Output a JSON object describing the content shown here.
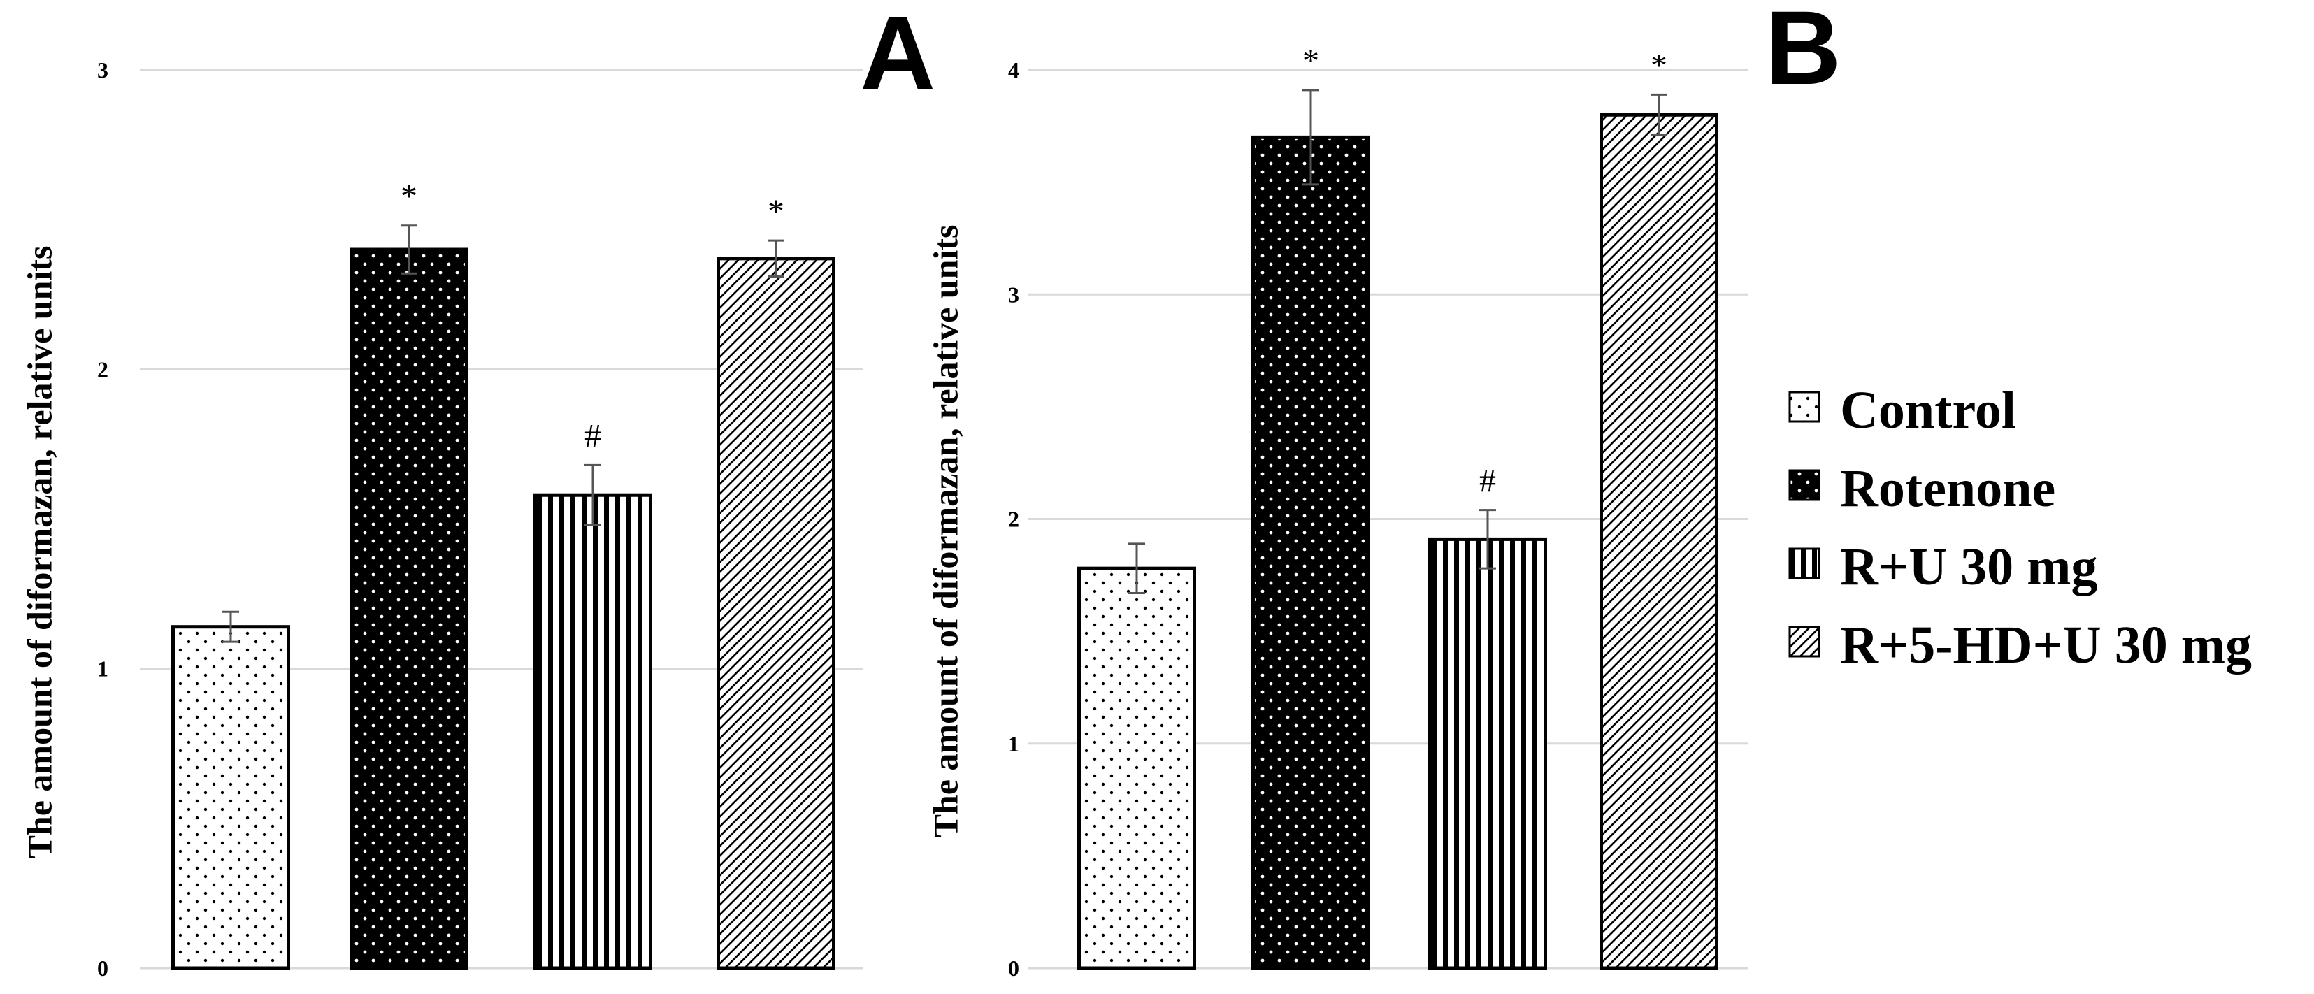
{
  "figure": {
    "legend": [
      {
        "label": "Control",
        "pattern": "dots-light"
      },
      {
        "label": "Rotenone",
        "pattern": "dots-dark"
      },
      {
        "label": "R+U 30 mg",
        "pattern": "vlines"
      },
      {
        "label": "R+5-HD+U 30 mg",
        "pattern": "diag"
      }
    ],
    "colors": {
      "bar_edge": "#000000",
      "dark_fill": "#000000",
      "light_fill": "#ffffff",
      "grid": "#d9d9d9",
      "error_bar": "#555555"
    }
  },
  "chart_data": [
    {
      "type": "bar",
      "panel_label": "A",
      "title": "",
      "xlabel": "",
      "ylabel": "The amount of diformazan, relative units",
      "ylim": [
        0,
        3
      ],
      "yticks": [
        0,
        1,
        2,
        3
      ],
      "grid": true,
      "categories": [
        "Control",
        "Rotenone",
        "R+U 30 mg",
        "R+5-HD+U 30 mg"
      ],
      "values": [
        1.14,
        2.4,
        1.58,
        2.37
      ],
      "errors": [
        0.05,
        0.08,
        0.1,
        0.06
      ],
      "annotations": [
        "",
        "*",
        "#",
        "*"
      ]
    },
    {
      "type": "bar",
      "panel_label": "B",
      "title": "",
      "xlabel": "",
      "ylabel": "The amount of diformazan, relative units",
      "ylim": [
        0,
        4
      ],
      "yticks": [
        0,
        1,
        2,
        3,
        4
      ],
      "grid": true,
      "categories": [
        "Control",
        "Rotenone",
        "R+U 30 mg",
        "R+5-HD+U 30 mg"
      ],
      "values": [
        1.78,
        3.7,
        1.91,
        3.8
      ],
      "errors": [
        0.11,
        0.21,
        0.13,
        0.09
      ],
      "annotations": [
        "",
        "*",
        "#",
        "*"
      ]
    }
  ]
}
